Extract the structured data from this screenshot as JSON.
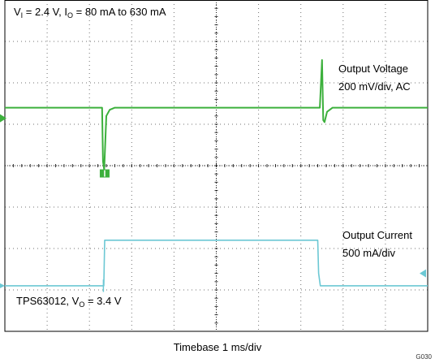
{
  "chart_data": {
    "type": "line",
    "title": {
      "v_prefix": "V",
      "v_sub": "I",
      "v_mid": " = 2.4 V, I",
      "i_sub": "O",
      "i_rest": " = 80 mA to 630 mA"
    },
    "device": {
      "name": "TPS63012, V",
      "sub": "O",
      "rest": " = 3.4 V"
    },
    "x_units": "ms",
    "xlim": [
      0,
      10
    ],
    "divisions": {
      "x": 10,
      "y": 8
    },
    "grid": true,
    "xlabel": "Timebase 1 ms/div",
    "figure_id": "G030",
    "colors": {
      "voltage": "#3cb03c",
      "current": "#6cc8d4",
      "grid": "#000000",
      "frame": "#000000"
    },
    "series": [
      {
        "name": "Output Voltage",
        "scale": "200 mV/div, AC",
        "units": "div",
        "x": [
          0,
          2.3,
          2.32,
          2.35,
          2.4,
          2.48,
          2.6,
          7.45,
          7.5,
          7.53,
          7.56,
          7.62,
          7.75,
          10
        ],
        "y": [
          5.4,
          5.4,
          4.1,
          3.9,
          5.2,
          5.35,
          5.4,
          5.4,
          6.55,
          5.1,
          5.05,
          5.3,
          5.4,
          5.4
        ]
      },
      {
        "name": "Output Current",
        "scale": "500 mA/div",
        "units": "div",
        "x": [
          0,
          2.34,
          2.36,
          2.42,
          7.4,
          7.42,
          7.46,
          10
        ],
        "y": [
          1.1,
          1.1,
          2.2,
          2.2,
          2.2,
          1.4,
          1.1,
          1.1
        ]
      }
    ],
    "voltage_label_line1": "Output Voltage",
    "voltage_label_line2": "200 mV/div, AC",
    "current_label_line1": "Output Current",
    "current_label_line2": "500 mA/div"
  }
}
